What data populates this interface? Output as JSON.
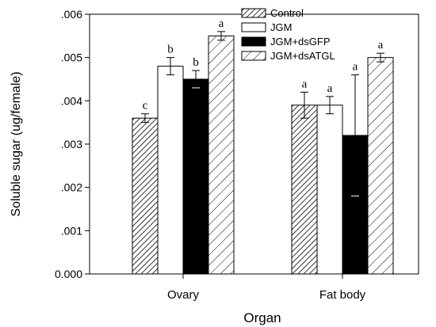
{
  "chart_data": {
    "type": "bar",
    "xlabel": "Organ",
    "ylabel": "Soluble sugar (ug/female)",
    "ylim": [
      0,
      0.006
    ],
    "yticks": [
      {
        "value": 0.0,
        "label": "0.000"
      },
      {
        "value": 0.001,
        "label": ".001"
      },
      {
        "value": 0.002,
        "label": ".002"
      },
      {
        "value": 0.003,
        "label": ".003"
      },
      {
        "value": 0.004,
        "label": ".004"
      },
      {
        "value": 0.005,
        "label": ".005"
      },
      {
        "value": 0.006,
        "label": ".006"
      }
    ],
    "categories": [
      "Ovary",
      "Fat body"
    ],
    "series": [
      {
        "name": "Control",
        "pattern": "hatch-dense",
        "values": [
          0.0036,
          0.0039
        ],
        "errors": [
          0.0001,
          0.0003
        ],
        "labels": [
          "c",
          "a"
        ]
      },
      {
        "name": "JGM",
        "pattern": "white",
        "values": [
          0.0048,
          0.0039
        ],
        "errors": [
          0.0002,
          0.0002
        ],
        "labels": [
          "b",
          "a"
        ]
      },
      {
        "name": "JGM+dsGFP",
        "pattern": "black",
        "values": [
          0.0045,
          0.0032
        ],
        "errors": [
          0.0002,
          0.0014
        ],
        "labels": [
          "b",
          "a"
        ]
      },
      {
        "name": "JGM+dsATGL",
        "pattern": "hatch-sparse",
        "values": [
          0.0055,
          0.005
        ],
        "errors": [
          0.0001,
          0.0001
        ],
        "labels": [
          "a",
          "a"
        ]
      }
    ],
    "legend": "top-right",
    "grid": false
  }
}
